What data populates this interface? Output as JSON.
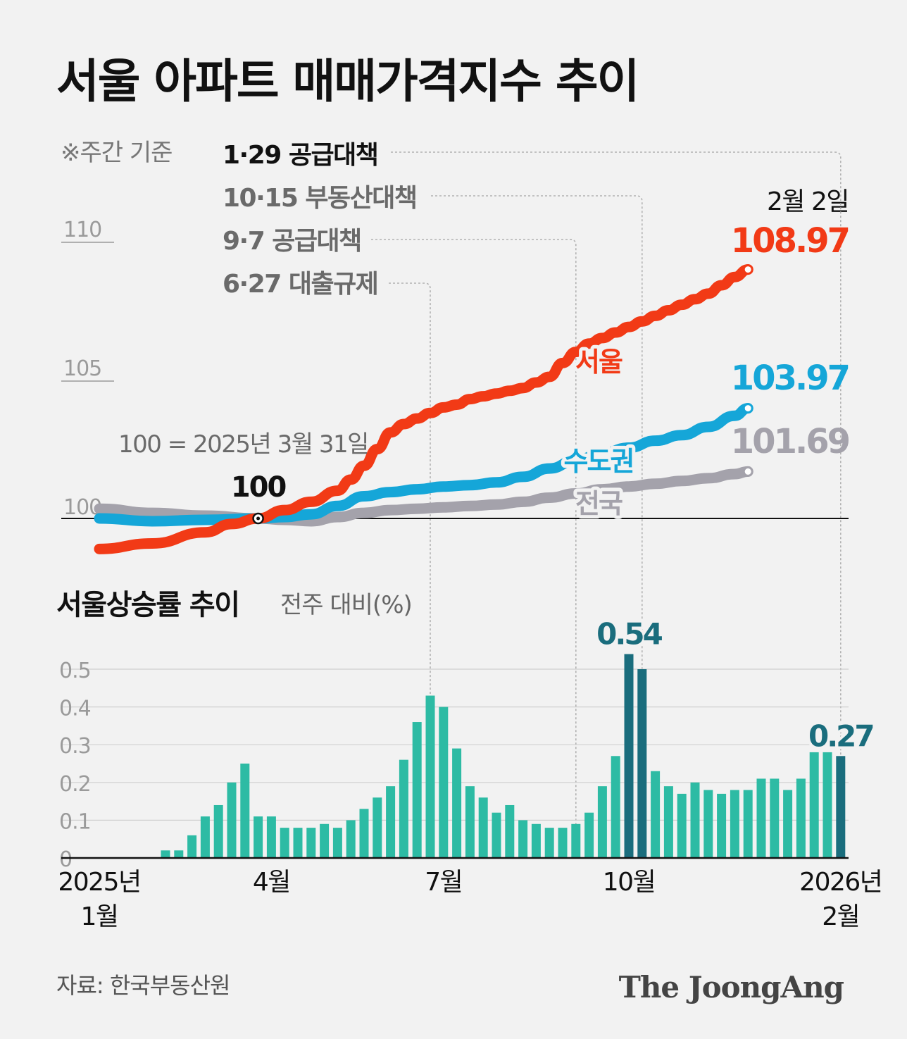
{
  "title": "서울 아파트 매매가격지수 추이",
  "basis_note": "※주간 기준",
  "events": [
    {
      "label": "1·29 공급대책",
      "week": 56
    },
    {
      "label": "10·15 부동산대책",
      "week": 41
    },
    {
      "label": "9·7 공급대책",
      "week": 36
    },
    {
      "label": "6·27 대출규제",
      "week": 25
    }
  ],
  "latest_date": "2월 2일",
  "base_note": "100 = 2025년 3월 31일",
  "base_point_label": "100",
  "source": "자료: 한국부동산원",
  "brand": "The JoongAng",
  "colors": {
    "seoul": "#f23a16",
    "capital": "#15a6d8",
    "national": "#a4a2ab",
    "bar": "#2dbba4",
    "bar_highlight": "#1a6d7d",
    "highlight_label": "#1a6d7d"
  },
  "chart_data": [
    {
      "type": "line",
      "title": "서울 아파트 매매가격지수 추이",
      "ylim": [
        97.2,
        111
      ],
      "yticks": [
        "110",
        "105",
        "100"
      ],
      "baseline": 100,
      "series": [
        {
          "name": "서울",
          "end_label": "108.97",
          "points": [
            [
              0,
              98.9
            ],
            [
              4,
              99.1
            ],
            [
              8,
              99.5
            ],
            [
              10,
              99.8
            ],
            [
              12,
              100.0
            ],
            [
              14,
              100.3
            ],
            [
              16,
              100.6
            ],
            [
              18,
              101.0
            ],
            [
              19,
              101.4
            ],
            [
              20,
              101.9
            ],
            [
              21,
              102.5
            ],
            [
              22,
              103.1
            ],
            [
              23,
              103.4
            ],
            [
              24,
              103.6
            ],
            [
              25,
              103.8
            ],
            [
              26,
              104.0
            ],
            [
              27,
              104.1
            ],
            [
              28,
              104.3
            ],
            [
              29,
              104.4
            ],
            [
              30,
              104.5
            ],
            [
              31,
              104.6
            ],
            [
              32,
              104.7
            ],
            [
              33,
              104.9
            ],
            [
              34,
              105.1
            ],
            [
              35,
              105.6
            ],
            [
              36,
              106.0
            ],
            [
              37,
              106.3
            ],
            [
              38,
              106.5
            ],
            [
              39,
              106.7
            ],
            [
              40,
              106.9
            ],
            [
              41,
              107.1
            ],
            [
              42,
              107.3
            ],
            [
              43,
              107.5
            ],
            [
              44,
              107.7
            ],
            [
              45,
              107.9
            ],
            [
              46,
              108.1
            ],
            [
              47,
              108.4
            ],
            [
              48,
              108.7
            ],
            [
              49,
              108.97
            ]
          ]
        },
        {
          "name": "수도권",
          "end_label": "103.97",
          "points": [
            [
              0,
              100.0
            ],
            [
              4,
              99.9
            ],
            [
              8,
              99.95
            ],
            [
              12,
              100.0
            ],
            [
              14,
              100.05
            ],
            [
              16,
              100.15
            ],
            [
              18,
              100.45
            ],
            [
              20,
              100.8
            ],
            [
              22,
              100.95
            ],
            [
              24,
              101.05
            ],
            [
              26,
              101.15
            ],
            [
              28,
              101.2
            ],
            [
              30,
              101.3
            ],
            [
              32,
              101.5
            ],
            [
              34,
              101.8
            ],
            [
              36,
              102.1
            ],
            [
              38,
              102.35
            ],
            [
              40,
              102.55
            ],
            [
              42,
              102.8
            ],
            [
              44,
              103.0
            ],
            [
              46,
              103.3
            ],
            [
              48,
              103.7
            ],
            [
              49,
              103.97
            ]
          ]
        },
        {
          "name": "전국",
          "end_label": "101.69",
          "points": [
            [
              0,
              100.35
            ],
            [
              4,
              100.2
            ],
            [
              8,
              100.1
            ],
            [
              12,
              100.0
            ],
            [
              14,
              99.95
            ],
            [
              16,
              99.9
            ],
            [
              18,
              100.05
            ],
            [
              20,
              100.2
            ],
            [
              22,
              100.3
            ],
            [
              24,
              100.35
            ],
            [
              26,
              100.4
            ],
            [
              28,
              100.45
            ],
            [
              30,
              100.5
            ],
            [
              32,
              100.6
            ],
            [
              34,
              100.75
            ],
            [
              36,
              100.9
            ],
            [
              38,
              101.05
            ],
            [
              40,
              101.15
            ],
            [
              42,
              101.25
            ],
            [
              44,
              101.35
            ],
            [
              46,
              101.45
            ],
            [
              48,
              101.6
            ],
            [
              49,
              101.69
            ]
          ]
        }
      ]
    },
    {
      "type": "bar",
      "title": "서울상승률 추이",
      "ylabel": "전주 대비(%)",
      "ylim": [
        0,
        0.55
      ],
      "yticks": [
        "0.5",
        "0.4",
        "0.3",
        "0.2",
        "0.1",
        "0"
      ],
      "xticks": [
        {
          "label": "2025년",
          "label2": "1월",
          "week": 0
        },
        {
          "label": "4월",
          "label2": "",
          "week": 13
        },
        {
          "label": "7월",
          "label2": "",
          "week": 26
        },
        {
          "label": "10월",
          "label2": "",
          "week": 40
        },
        {
          "label": "2026년",
          "label2": "2월",
          "week": 56
        }
      ],
      "values": [
        0,
        0,
        0,
        0,
        0,
        0.02,
        0.02,
        0.06,
        0.11,
        0.14,
        0.2,
        0.25,
        0.11,
        0.11,
        0.08,
        0.08,
        0.08,
        0.09,
        0.08,
        0.1,
        0.13,
        0.16,
        0.19,
        0.26,
        0.36,
        0.43,
        0.4,
        0.29,
        0.19,
        0.16,
        0.12,
        0.14,
        0.1,
        0.09,
        0.08,
        0.08,
        0.09,
        0.12,
        0.19,
        0.27,
        0.54,
        0.5,
        0.23,
        0.19,
        0.17,
        0.2,
        0.18,
        0.17,
        0.18,
        0.18,
        0.21,
        0.21,
        0.18,
        0.21,
        0.28,
        0.28,
        0.27
      ],
      "highlights": [
        {
          "week": 40,
          "label": "0.54"
        },
        {
          "week": 41,
          "label": ""
        },
        {
          "week": 56,
          "label": "0.27"
        }
      ]
    }
  ]
}
